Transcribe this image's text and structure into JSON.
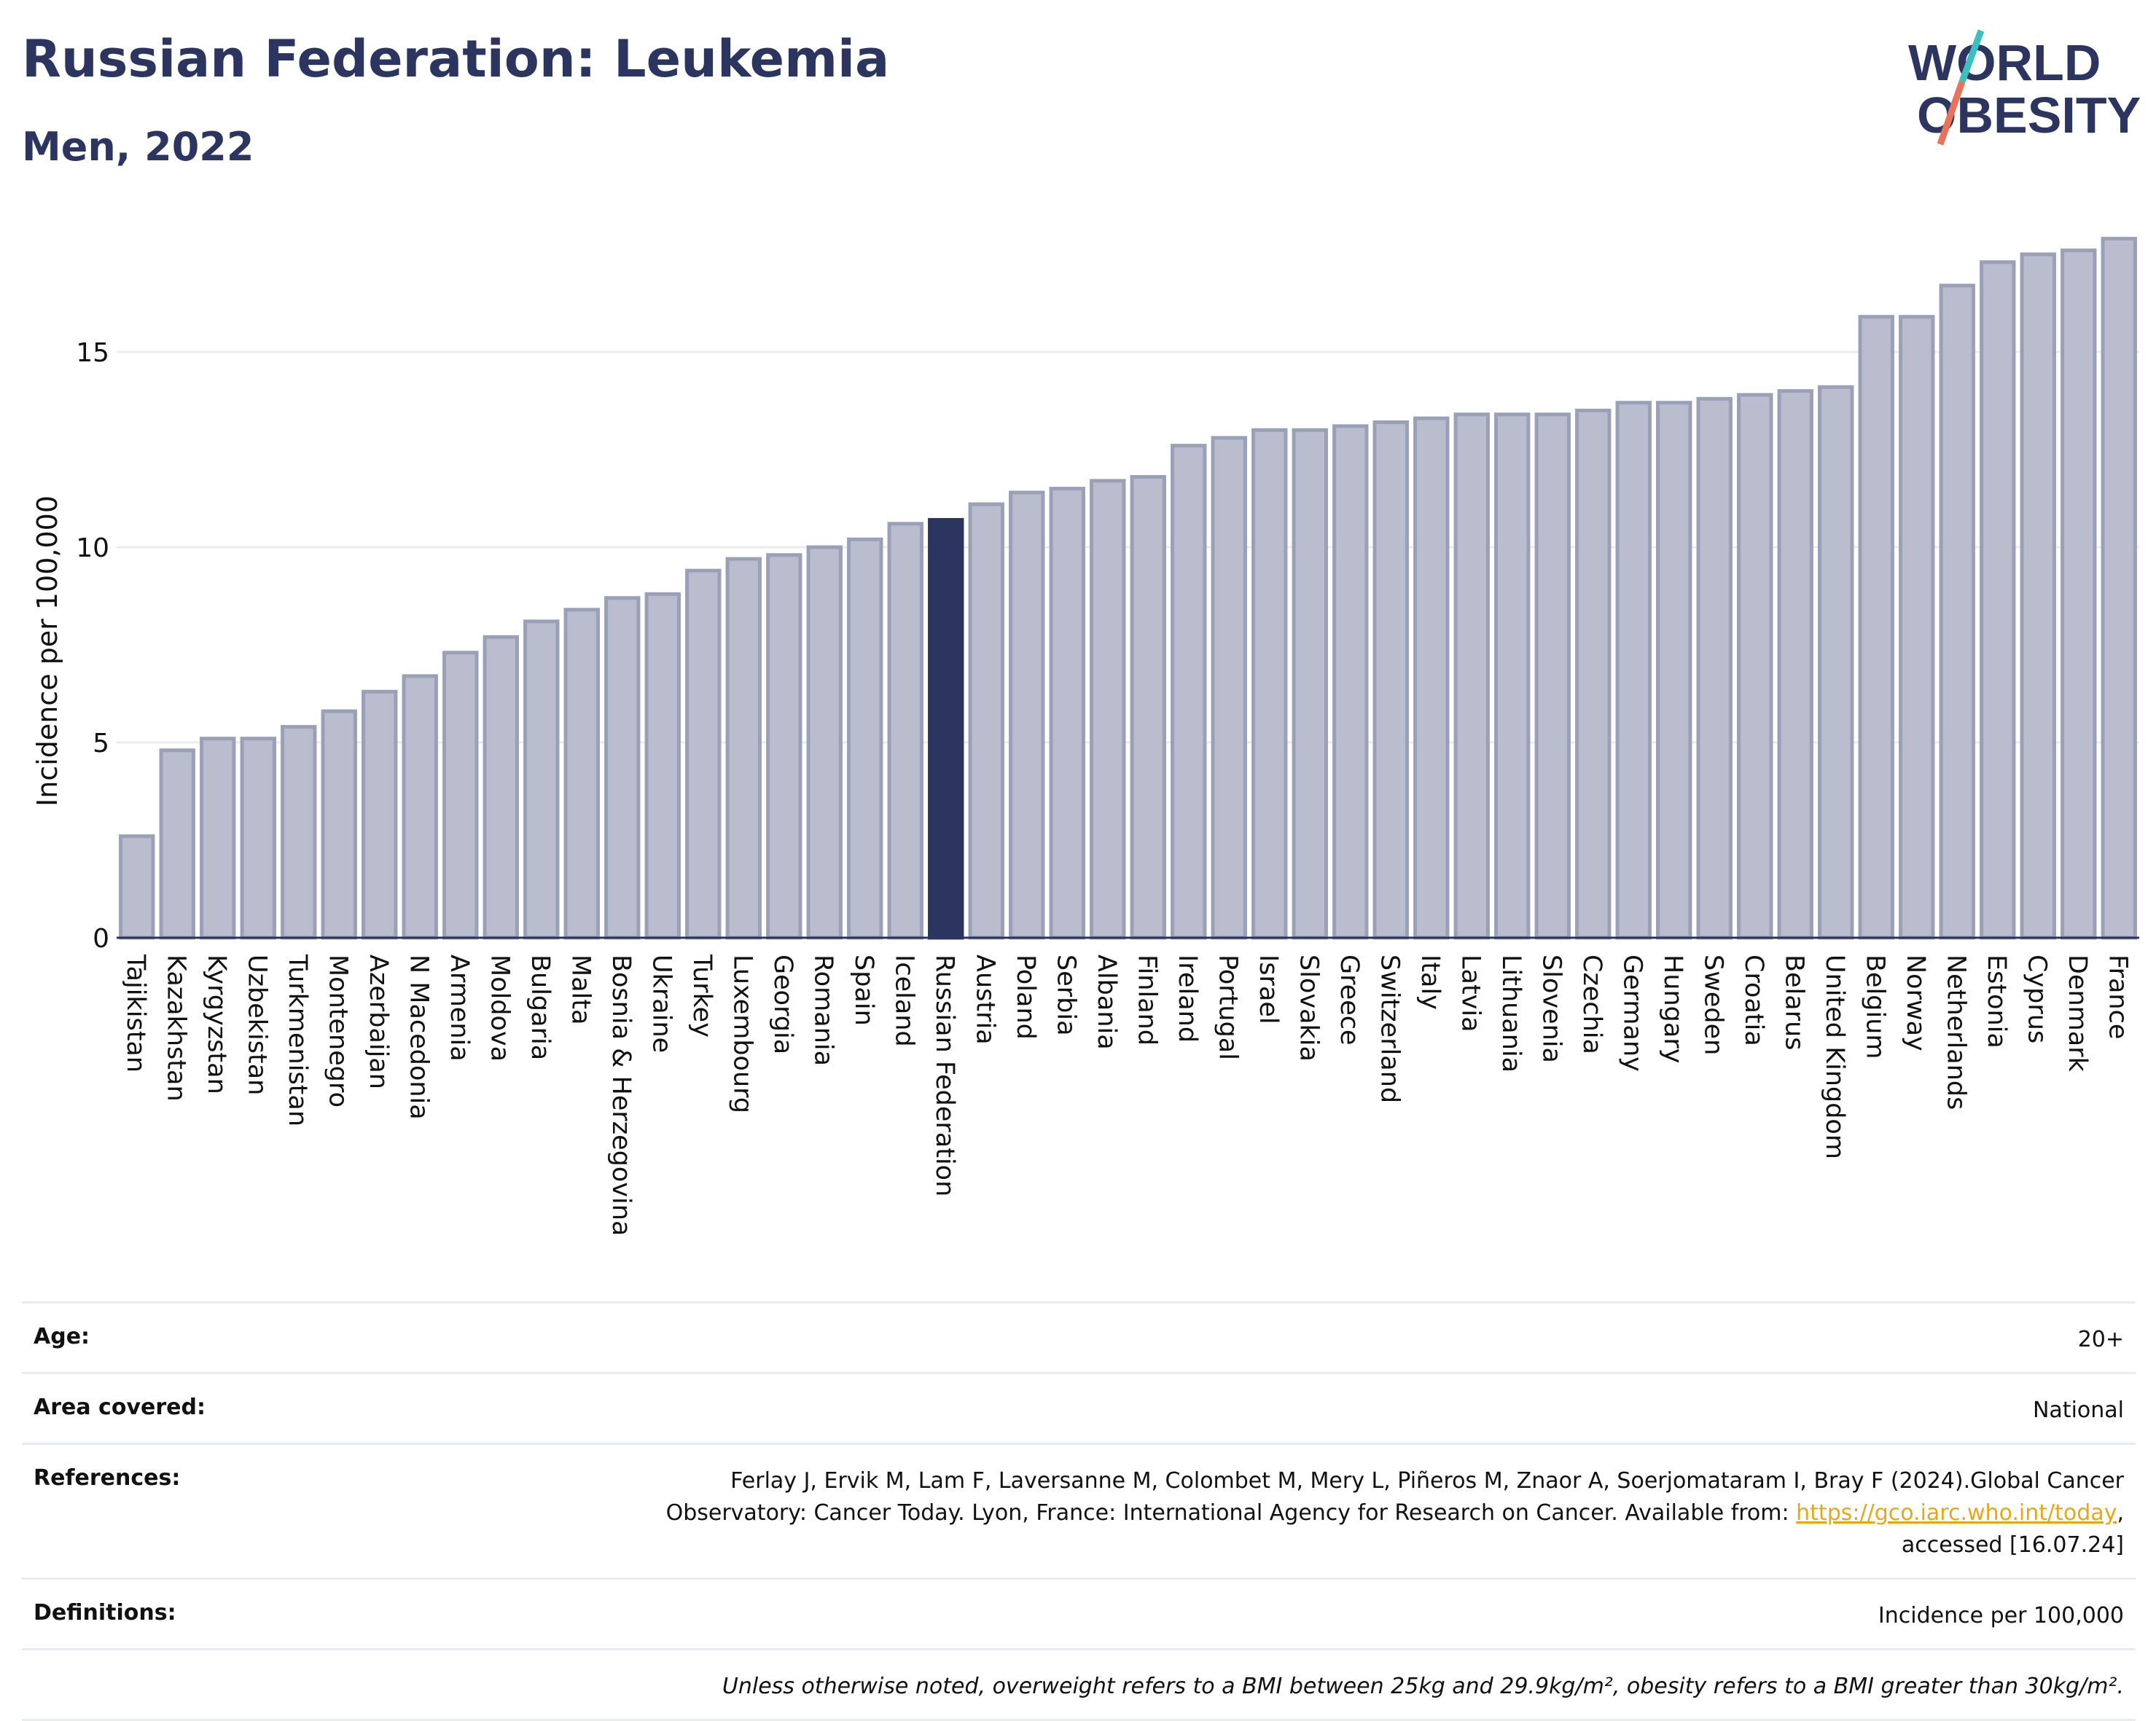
{
  "header": {
    "title": "Russian Federation: Leukemia",
    "subtitle": "Men, 2022"
  },
  "logo": {
    "line1": "WORLD",
    "line2": "OBESITY",
    "slash_color_top": "#3bbfbf",
    "slash_color_bottom": "#e8735a"
  },
  "colors": {
    "bar_default": "#b9bdcd",
    "bar_default_stroke": "#9aa0b8",
    "bar_highlight": "#2c3560",
    "title": "#2c3560",
    "grid": "#e9ecf1"
  },
  "chart_data": {
    "type": "bar",
    "ylabel": "Incidence per 100,000",
    "xlabel": "",
    "ylim": [
      0,
      18
    ],
    "yticks": [
      0,
      5,
      10,
      15
    ],
    "highlight": "Russian Federation",
    "categories": [
      "Tajikistan",
      "Kazakhstan",
      "Kyrgyzstan",
      "Uzbekistan",
      "Turkmenistan",
      "Montenegro",
      "Azerbaijan",
      "N Macedonia",
      "Armenia",
      "Moldova",
      "Bulgaria",
      "Malta",
      "Bosnia & Herzegovina",
      "Ukraine",
      "Turkey",
      "Luxembourg",
      "Georgia",
      "Romania",
      "Spain",
      "Iceland",
      "Russian Federation",
      "Austria",
      "Poland",
      "Serbia",
      "Albania",
      "Finland",
      "Ireland",
      "Portugal",
      "Israel",
      "Slovakia",
      "Greece",
      "Switzerland",
      "Italy",
      "Latvia",
      "Lithuania",
      "Slovenia",
      "Czechia",
      "Germany",
      "Hungary",
      "Sweden",
      "Croatia",
      "Belarus",
      "United Kingdom",
      "Belgium",
      "Norway",
      "Netherlands",
      "Estonia",
      "Cyprus",
      "Denmark",
      "France"
    ],
    "values": [
      2.6,
      4.8,
      5.1,
      5.1,
      5.4,
      5.8,
      6.3,
      6.7,
      7.3,
      7.7,
      8.1,
      8.4,
      8.7,
      8.8,
      9.4,
      9.7,
      9.8,
      10.0,
      10.2,
      10.6,
      10.7,
      11.1,
      11.4,
      11.5,
      11.7,
      11.8,
      12.6,
      12.8,
      13.0,
      13.0,
      13.1,
      13.2,
      13.3,
      13.4,
      13.4,
      13.4,
      13.5,
      13.7,
      13.7,
      13.8,
      13.9,
      14.0,
      14.1,
      15.9,
      15.9,
      16.7,
      17.3,
      17.5,
      17.6,
      17.9
    ],
    "grid": true
  },
  "info": {
    "age_label": "Age:",
    "age_value": "20+",
    "area_label": "Area covered:",
    "area_value": "National",
    "references_label": "References:",
    "references_text": "Ferlay J, Ervik M, Lam F, Laversanne M, Colombet M, Mery L, Piñeros M, Znaor A, Soerjomataram I, Bray F (2024).Global Cancer Observatory: Cancer Today. Lyon, France: International Agency for Research on Cancer. Available from: ",
    "references_link": "https://gco.iarc.who.int/today",
    "references_suffix": ", accessed [16.07.24]",
    "definitions_label": "Definitions:",
    "definitions_value": "Incidence per 100,000",
    "note": "Unless otherwise noted, overweight refers to a BMI between 25kg and 29.9kg/m², obesity refers to a BMI greater than 30kg/m²."
  }
}
